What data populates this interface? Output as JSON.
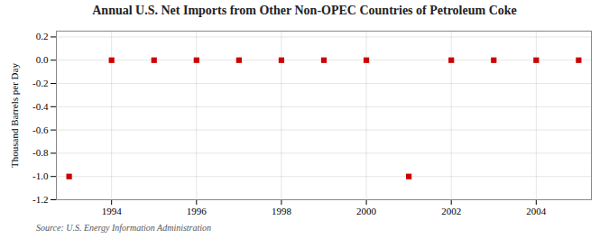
{
  "chart_data": {
    "type": "scatter",
    "title": "Annual U.S. Net Imports from Other Non-OPEC Countries of Petroleum Coke",
    "ylabel": "Thousand Barrels per Day",
    "source": "Source: U.S. Energy Information Administration",
    "x": [
      1993,
      1994,
      1995,
      1996,
      1997,
      1998,
      1999,
      2000,
      2001,
      2002,
      2003,
      2004,
      2005
    ],
    "values": [
      -1.0,
      0.0,
      0.0,
      0.0,
      0.0,
      0.0,
      0.0,
      0.0,
      -1.0,
      0.0,
      0.0,
      0.0,
      0.0
    ],
    "color": "#cc0000",
    "marker": "square",
    "xlim": [
      1992.7,
      2005.3
    ],
    "ylim": [
      -1.2,
      0.25
    ],
    "xticks": [
      1994,
      1996,
      1998,
      2000,
      2002,
      2004
    ],
    "yticks": [
      0.2,
      {
        "value": 0.0,
        "label": "0.0"
      },
      -0.2,
      -0.4,
      -0.6,
      -0.8,
      {
        "value": -1.0,
        "label": "-1.0"
      },
      -1.2
    ],
    "grid": true
  }
}
